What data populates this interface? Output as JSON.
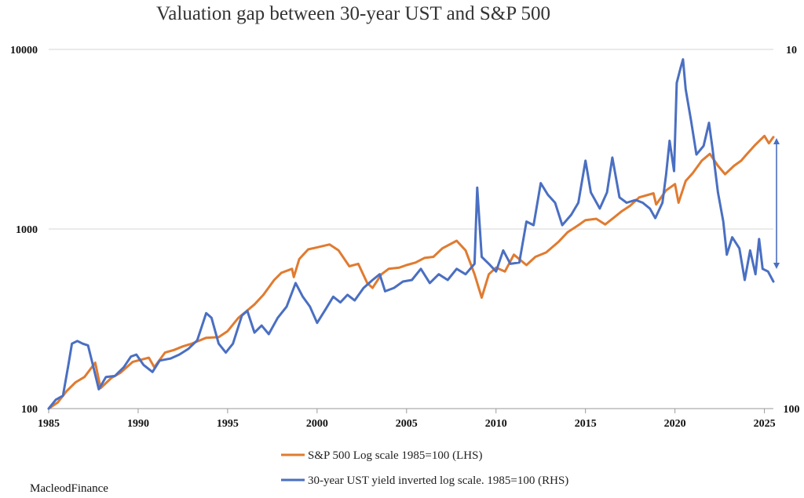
{
  "title": "Valuation gap between 30-year UST and S&P 500",
  "credit": "MacleodFinance",
  "chart_data": {
    "type": "line",
    "title": "Valuation gap between 30-year UST and S&P 500",
    "x_ticks": [
      "1985",
      "1990",
      "1995",
      "2000",
      "2005",
      "2010",
      "2015",
      "2020",
      "2025"
    ],
    "left_axis": {
      "scale": "log",
      "range": [
        100,
        10000
      ],
      "ticks": [
        "100",
        "1000",
        "10000"
      ]
    },
    "right_axis": {
      "scale": "log",
      "ticks": [
        "100",
        "10"
      ]
    },
    "grid": true,
    "legend_position": "bottom",
    "series": [
      {
        "name": "S&P 500 Log scale 1985=100 (LHS)",
        "axis": "left",
        "color": "#E07B30",
        "points": [
          [
            1985.0,
            100
          ],
          [
            1985.5,
            108
          ],
          [
            1986.0,
            125
          ],
          [
            1986.5,
            140
          ],
          [
            1987.0,
            150
          ],
          [
            1987.6,
            180
          ],
          [
            1987.9,
            130
          ],
          [
            1988.5,
            148
          ],
          [
            1989.0,
            158
          ],
          [
            1989.7,
            182
          ],
          [
            1990.6,
            192
          ],
          [
            1990.9,
            170
          ],
          [
            1991.5,
            205
          ],
          [
            1992.0,
            212
          ],
          [
            1992.5,
            222
          ],
          [
            1993.0,
            230
          ],
          [
            1993.8,
            248
          ],
          [
            1994.5,
            250
          ],
          [
            1995.0,
            270
          ],
          [
            1995.6,
            320
          ],
          [
            1996.0,
            345
          ],
          [
            1996.5,
            380
          ],
          [
            1997.0,
            430
          ],
          [
            1997.6,
            520
          ],
          [
            1998.0,
            570
          ],
          [
            1998.6,
            600
          ],
          [
            1998.7,
            540
          ],
          [
            1999.0,
            680
          ],
          [
            1999.5,
            770
          ],
          [
            2000.0,
            790
          ],
          [
            2000.7,
            820
          ],
          [
            2001.2,
            760
          ],
          [
            2001.8,
            620
          ],
          [
            2002.3,
            640
          ],
          [
            2002.8,
            500
          ],
          [
            2003.1,
            470
          ],
          [
            2003.6,
            560
          ],
          [
            2004.0,
            600
          ],
          [
            2004.6,
            610
          ],
          [
            2005.0,
            630
          ],
          [
            2005.5,
            650
          ],
          [
            2006.0,
            690
          ],
          [
            2006.5,
            700
          ],
          [
            2007.0,
            780
          ],
          [
            2007.8,
            860
          ],
          [
            2008.3,
            760
          ],
          [
            2008.8,
            560
          ],
          [
            2009.2,
            415
          ],
          [
            2009.6,
            560
          ],
          [
            2010.0,
            610
          ],
          [
            2010.5,
            580
          ],
          [
            2011.0,
            720
          ],
          [
            2011.7,
            630
          ],
          [
            2012.2,
            700
          ],
          [
            2012.8,
            740
          ],
          [
            2013.5,
            850
          ],
          [
            2014.0,
            960
          ],
          [
            2014.6,
            1050
          ],
          [
            2015.0,
            1120
          ],
          [
            2015.6,
            1140
          ],
          [
            2016.1,
            1060
          ],
          [
            2016.6,
            1160
          ],
          [
            2017.0,
            1250
          ],
          [
            2017.5,
            1350
          ],
          [
            2018.0,
            1500
          ],
          [
            2018.8,
            1580
          ],
          [
            2018.95,
            1370
          ],
          [
            2019.5,
            1640
          ],
          [
            2020.0,
            1780
          ],
          [
            2020.2,
            1400
          ],
          [
            2020.6,
            1850
          ],
          [
            2021.0,
            2050
          ],
          [
            2021.5,
            2400
          ],
          [
            2021.95,
            2620
          ],
          [
            2022.4,
            2250
          ],
          [
            2022.8,
            2020
          ],
          [
            2023.3,
            2250
          ],
          [
            2023.7,
            2400
          ],
          [
            2024.0,
            2600
          ],
          [
            2024.5,
            2950
          ],
          [
            2025.0,
            3300
          ],
          [
            2025.25,
            3000
          ],
          [
            2025.5,
            3250
          ]
        ]
      },
      {
        "name": "30-year UST yield inverted log scale. 1985=100 (RHS)",
        "axis": "right",
        "color": "#4A6FC2",
        "points": [
          [
            1985.0,
            100
          ],
          [
            1985.4,
            112
          ],
          [
            1985.8,
            118
          ],
          [
            1986.1,
            175
          ],
          [
            1986.3,
            230
          ],
          [
            1986.6,
            238
          ],
          [
            1986.9,
            230
          ],
          [
            1987.2,
            225
          ],
          [
            1987.5,
            170
          ],
          [
            1987.8,
            128
          ],
          [
            1988.2,
            150
          ],
          [
            1988.7,
            152
          ],
          [
            1989.2,
            170
          ],
          [
            1989.6,
            195
          ],
          [
            1989.9,
            200
          ],
          [
            1990.3,
            175
          ],
          [
            1990.8,
            160
          ],
          [
            1991.2,
            185
          ],
          [
            1991.8,
            190
          ],
          [
            1992.3,
            200
          ],
          [
            1992.8,
            215
          ],
          [
            1993.3,
            240
          ],
          [
            1993.8,
            340
          ],
          [
            1994.1,
            320
          ],
          [
            1994.5,
            230
          ],
          [
            1994.9,
            205
          ],
          [
            1995.3,
            230
          ],
          [
            1995.8,
            330
          ],
          [
            1996.1,
            350
          ],
          [
            1996.5,
            265
          ],
          [
            1996.9,
            290
          ],
          [
            1997.3,
            260
          ],
          [
            1997.8,
            320
          ],
          [
            1998.3,
            370
          ],
          [
            1998.8,
            500
          ],
          [
            1999.2,
            420
          ],
          [
            1999.6,
            370
          ],
          [
            2000.0,
            300
          ],
          [
            2000.5,
            360
          ],
          [
            2000.9,
            420
          ],
          [
            2001.3,
            390
          ],
          [
            2001.7,
            430
          ],
          [
            2002.1,
            400
          ],
          [
            2002.6,
            470
          ],
          [
            2003.1,
            520
          ],
          [
            2003.5,
            560
          ],
          [
            2003.8,
            450
          ],
          [
            2004.3,
            470
          ],
          [
            2004.8,
            510
          ],
          [
            2005.3,
            520
          ],
          [
            2005.8,
            600
          ],
          [
            2006.3,
            500
          ],
          [
            2006.8,
            560
          ],
          [
            2007.3,
            520
          ],
          [
            2007.8,
            600
          ],
          [
            2008.3,
            560
          ],
          [
            2008.8,
            640
          ],
          [
            2008.95,
            1700
          ],
          [
            2009.2,
            700
          ],
          [
            2009.6,
            640
          ],
          [
            2010.0,
            580
          ],
          [
            2010.4,
            760
          ],
          [
            2010.8,
            640
          ],
          [
            2011.3,
            650
          ],
          [
            2011.7,
            1100
          ],
          [
            2012.1,
            1050
          ],
          [
            2012.5,
            1800
          ],
          [
            2012.9,
            1550
          ],
          [
            2013.3,
            1400
          ],
          [
            2013.7,
            1050
          ],
          [
            2014.2,
            1200
          ],
          [
            2014.6,
            1400
          ],
          [
            2015.0,
            2400
          ],
          [
            2015.3,
            1600
          ],
          [
            2015.8,
            1300
          ],
          [
            2016.2,
            1600
          ],
          [
            2016.5,
            2500
          ],
          [
            2016.9,
            1500
          ],
          [
            2017.3,
            1400
          ],
          [
            2017.8,
            1450
          ],
          [
            2018.2,
            1400
          ],
          [
            2018.6,
            1300
          ],
          [
            2018.9,
            1150
          ],
          [
            2019.3,
            1400
          ],
          [
            2019.5,
            2000
          ],
          [
            2019.7,
            3100
          ],
          [
            2019.95,
            2100
          ],
          [
            2020.1,
            6500
          ],
          [
            2020.3,
            7800
          ],
          [
            2020.45,
            8800
          ],
          [
            2020.6,
            6000
          ],
          [
            2020.9,
            4000
          ],
          [
            2021.2,
            2600
          ],
          [
            2021.6,
            2900
          ],
          [
            2021.9,
            3900
          ],
          [
            2022.1,
            2800
          ],
          [
            2022.4,
            1600
          ],
          [
            2022.7,
            1100
          ],
          [
            2022.9,
            720
          ],
          [
            2023.2,
            900
          ],
          [
            2023.6,
            780
          ],
          [
            2023.9,
            520
          ],
          [
            2024.2,
            760
          ],
          [
            2024.5,
            560
          ],
          [
            2024.7,
            880
          ],
          [
            2024.9,
            600
          ],
          [
            2025.2,
            580
          ],
          [
            2025.5,
            510
          ]
        ]
      }
    ]
  }
}
